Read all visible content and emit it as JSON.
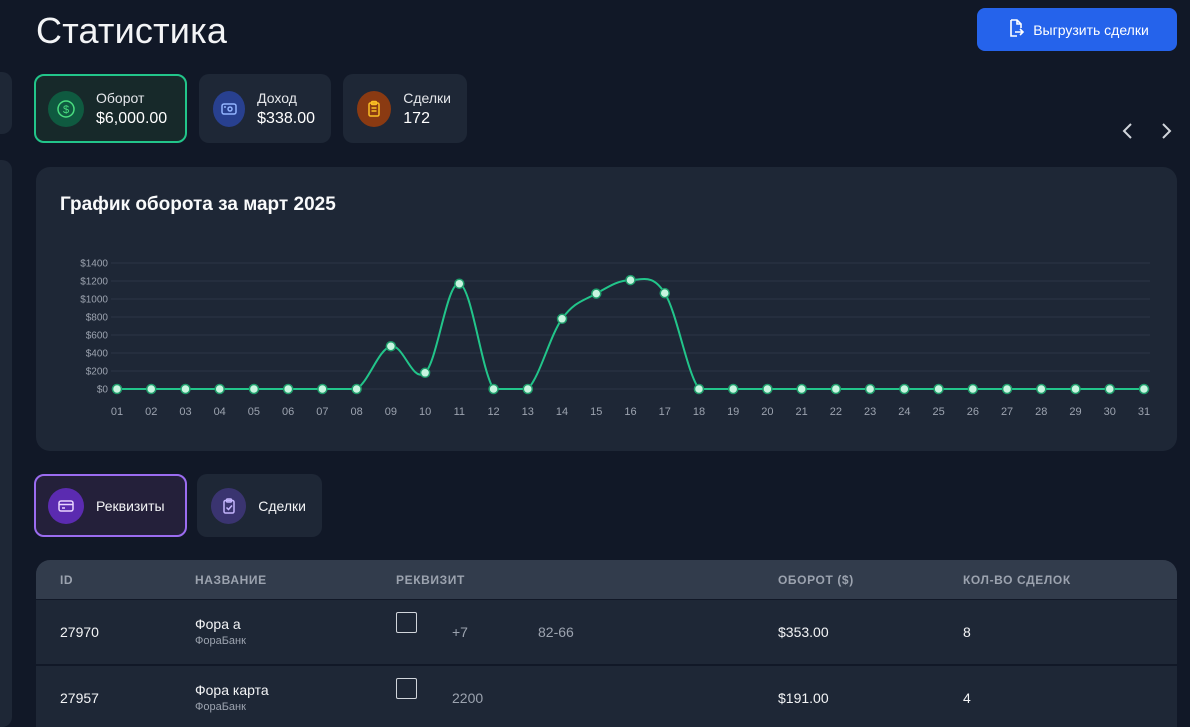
{
  "page": {
    "title": "Статистика"
  },
  "header": {
    "export_label": "Выгрузить сделки"
  },
  "stats": [
    {
      "label": "Оборот",
      "value": "$6,000.00",
      "icon": "dollar-icon",
      "color": "#22c58a"
    },
    {
      "label": "Доход",
      "value": "$338.00",
      "icon": "wallet-icon",
      "color": "#4a6cf0"
    },
    {
      "label": "Сделки",
      "value": "172",
      "icon": "clipboard-icon",
      "color": "#f5a23a"
    }
  ],
  "chart": {
    "title": "График оборота за март 2025"
  },
  "chart_data": {
    "type": "line",
    "title": "График оборота за март 2025",
    "xlabel": "",
    "ylabel": "",
    "ylim": [
      0,
      1400
    ],
    "y_ticks": [
      "$0",
      "$200",
      "$400",
      "$600",
      "$800",
      "$1000",
      "$1200",
      "$1400"
    ],
    "y_tick_values": [
      0,
      200,
      400,
      600,
      800,
      1000,
      1200,
      1400
    ],
    "categories": [
      "01",
      "02",
      "03",
      "04",
      "05",
      "06",
      "07",
      "08",
      "09",
      "10",
      "11",
      "12",
      "13",
      "14",
      "15",
      "16",
      "17",
      "18",
      "19",
      "20",
      "21",
      "22",
      "23",
      "24",
      "25",
      "26",
      "27",
      "28",
      "29",
      "30",
      "31"
    ],
    "values": [
      0,
      0,
      0,
      0,
      0,
      0,
      0,
      0,
      475,
      180,
      1170,
      0,
      0,
      780,
      1060,
      1210,
      1065,
      0,
      0,
      0,
      0,
      0,
      0,
      0,
      0,
      0,
      0,
      0,
      0,
      0,
      0
    ],
    "color": "#22c58a",
    "grid": true,
    "legend": "none"
  },
  "tabs": [
    {
      "label": "Реквизиты",
      "icon": "card-icon",
      "active": true
    },
    {
      "label": "Сделки",
      "icon": "clipboard-check-icon",
      "active": false
    }
  ],
  "table": {
    "headers": {
      "id": "ID",
      "name": "НАЗВАНИЕ",
      "requisite": "РЕКВИЗИТ",
      "turnover": "ОБОРОТ ($)",
      "deals": "КОЛ-ВО СДЕЛОК"
    },
    "rows": [
      {
        "id": "27970",
        "name": "Фора а",
        "bank": "ФораБанк",
        "req_a": "+7",
        "req_b": "82-66",
        "turnover": "$353.00",
        "deals": "8"
      },
      {
        "id": "27957",
        "name": "Фора карта",
        "bank": "ФораБанк",
        "req_a": "2200",
        "req_b": "",
        "turnover": "$191.00",
        "deals": "4"
      }
    ]
  }
}
